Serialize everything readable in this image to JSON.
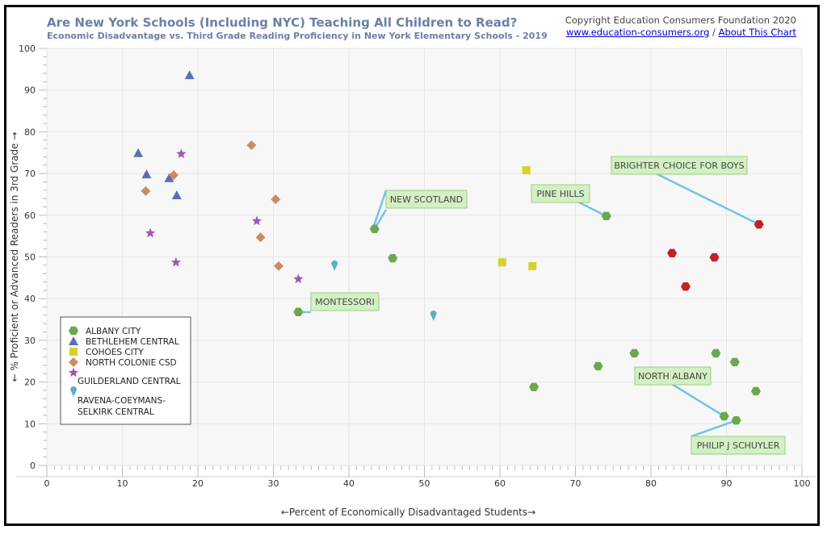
{
  "header": {
    "title": "Are New York Schools (Including NYC) Teaching All Children to Read?",
    "subtitle": "Economic Disadvantage vs. Third Grade Reading Proficiency in New York Elementary Schools - 2019",
    "copyright": "Copyright Education Consumers Foundation 2020",
    "link_site": "www.education-consumers.org",
    "separator": "/",
    "link_about": "About This Chart"
  },
  "chart_data": {
    "type": "scatter",
    "title": "Are New York Schools (Including NYC) Teaching All Children to Read?",
    "subtitle": "Economic Disadvantage vs. Third Grade Reading Proficiency in New York Elementary Schools - 2019",
    "xlabel": "←Percent of Economically Disadvantaged Students→",
    "ylabel": "← % Proficient or Advanced Readers in 3rd Grade →",
    "xlim": [
      0,
      100
    ],
    "ylim": [
      0,
      100
    ],
    "xticks": [
      0,
      10,
      20,
      30,
      40,
      50,
      60,
      70,
      80,
      90,
      100
    ],
    "yticks": [
      0,
      10,
      20,
      30,
      40,
      50,
      60,
      70,
      80,
      90,
      100
    ],
    "grid": true,
    "legend_placement": "bottom-left",
    "series": [
      {
        "name": "ALBANY CITY",
        "marker": "hexagon",
        "color": "#6aa84f",
        "points": [
          [
            43.4,
            56.7
          ],
          [
            45.8,
            49.7
          ],
          [
            33.3,
            36.8
          ],
          [
            74.1,
            59.8
          ],
          [
            64.5,
            18.8
          ],
          [
            73.0,
            23.8
          ],
          [
            77.8,
            26.9
          ],
          [
            88.6,
            26.9
          ],
          [
            91.1,
            24.8
          ],
          [
            93.9,
            17.8
          ],
          [
            89.7,
            11.8
          ],
          [
            91.3,
            10.8
          ]
        ]
      },
      {
        "name": "BETHLEHEM CENTRAL",
        "marker": "triangle",
        "color": "#5b6fb5",
        "points": [
          [
            18.9,
            93.6
          ],
          [
            12.1,
            74.9
          ],
          [
            13.2,
            69.8
          ],
          [
            16.2,
            68.9
          ],
          [
            17.2,
            64.8
          ]
        ]
      },
      {
        "name": "COHOES CITY",
        "marker": "square",
        "color": "#d9d12c",
        "points": [
          [
            63.5,
            70.8
          ],
          [
            60.3,
            48.7
          ],
          [
            64.3,
            47.8
          ]
        ]
      },
      {
        "name": "NORTH COLONIE CSD",
        "marker": "diamond",
        "color": "#c98b62",
        "points": [
          [
            27.1,
            76.8
          ],
          [
            16.8,
            69.6
          ],
          [
            13.1,
            65.8
          ],
          [
            30.3,
            63.8
          ],
          [
            28.3,
            54.7
          ],
          [
            30.7,
            47.8
          ]
        ]
      },
      {
        "name": "GUILDERLAND CENTRAL",
        "marker": "star",
        "color": "#a056b5",
        "points": [
          [
            17.8,
            74.7
          ],
          [
            27.8,
            58.6
          ],
          [
            13.7,
            55.7
          ],
          [
            17.1,
            48.7
          ],
          [
            33.3,
            44.7
          ]
        ]
      },
      {
        "name": "RAVENA-COEYMANS-SELKIRK CENTRAL",
        "marker": "drop",
        "color": "#5fafc2",
        "points": [
          [
            38.1,
            47.8
          ],
          [
            51.2,
            35.8
          ]
        ]
      },
      {
        "marker": "hexagon",
        "color": "#c0222a",
        "points": [
          [
            94.3,
            57.8
          ],
          [
            82.8,
            50.9
          ],
          [
            88.4,
            49.9
          ],
          [
            84.6,
            42.9
          ]
        ]
      }
    ],
    "legend": [
      "ALBANY CITY",
      "BETHLEHEM CENTRAL",
      "COHOES CITY",
      "NORTH COLONIE CSD",
      "GUILDERLAND CENTRAL",
      "RAVENA-COEYMANS-SELKIRK CENTRAL"
    ],
    "annotations": [
      {
        "text": "NEW SCOTLAND",
        "point": [
          43.4,
          56.7
        ]
      },
      {
        "text": "MONTESSORI",
        "point": [
          33.3,
          36.8
        ]
      },
      {
        "text": "PINE HILLS",
        "point": [
          74.1,
          59.8
        ]
      },
      {
        "text": "BRIGHTER CHOICE FOR BOYS",
        "point": [
          94.3,
          57.8
        ]
      },
      {
        "text": "NORTH ALBANY",
        "point": [
          89.7,
          11.8
        ]
      },
      {
        "text": "PHILIP J SCHUYLER",
        "point": [
          91.3,
          10.8
        ]
      }
    ]
  }
}
